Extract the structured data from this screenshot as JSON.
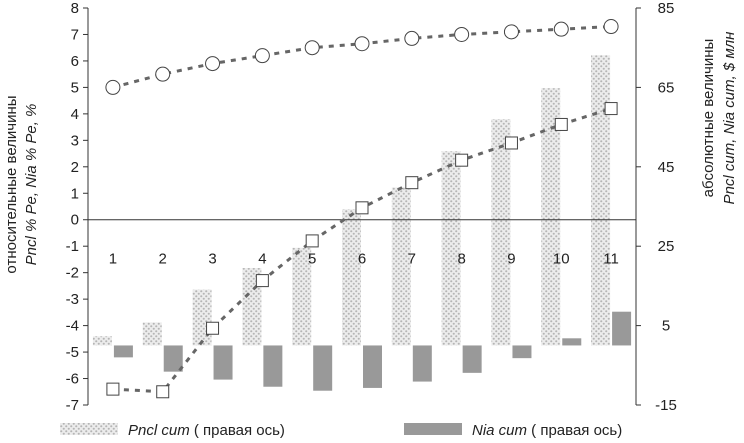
{
  "chart_data": {
    "type": "bar",
    "categories": [
      "1",
      "2",
      "3",
      "4",
      "5",
      "6",
      "7",
      "8",
      "9",
      "10",
      "11"
    ],
    "left_axis": {
      "label_lines": [
        "относительные величины",
        "Pncl % Pe, Nia % Pe, %"
      ],
      "ylim": [
        -7,
        8
      ],
      "ticks": [
        "-7",
        "-6",
        "-5",
        "-4",
        "-3",
        "-2",
        "-1",
        "0",
        "1",
        "2",
        "3",
        "4",
        "5",
        "6",
        "7",
        "8"
      ]
    },
    "right_axis": {
      "label_lines": [
        "абсолютные величины",
        "Pncl cum, Nia cum, $ млн"
      ],
      "ylim": [
        -15,
        85
      ],
      "ticks": [
        "-15",
        "5",
        "25",
        "45",
        "65",
        "85"
      ]
    },
    "series": [
      {
        "marker": "circle",
        "axis": "left",
        "values": [
          5.0,
          5.5,
          5.9,
          6.2,
          6.5,
          6.65,
          6.85,
          7.0,
          7.1,
          7.2,
          7.3
        ]
      },
      {
        "marker": "square",
        "axis": "left",
        "values": [
          -6.4,
          -6.5,
          -4.1,
          -2.3,
          -0.8,
          0.45,
          1.4,
          2.25,
          2.9,
          3.6,
          4.2
        ]
      },
      {
        "name": "Pncl cum ( правая ось)",
        "axis": "right",
        "style": "hatched",
        "values": [
          2.3,
          5.8,
          14.1,
          19.5,
          24.6,
          34.3,
          39.8,
          48.9,
          57.0,
          64.8,
          73.1
        ]
      },
      {
        "name": "Nia cum ( правая ось)",
        "axis": "right",
        "style": "solid",
        "values": [
          -3.0,
          -6.6,
          -8.6,
          -10.4,
          -11.4,
          -10.7,
          -9.1,
          -6.9,
          -3.2,
          1.8,
          8.5
        ]
      }
    ],
    "legend": {
      "position": "bottom",
      "entries": [
        {
          "name": "Pncl cum",
          "suffix": " ( правая ось)"
        },
        {
          "name": "Nia cum",
          "suffix": " ( правая ось)"
        }
      ]
    },
    "colors": {
      "hatched": "#c8c8c8",
      "solid": "#999999",
      "line": "#666666",
      "marker_edge": "#444444"
    }
  }
}
